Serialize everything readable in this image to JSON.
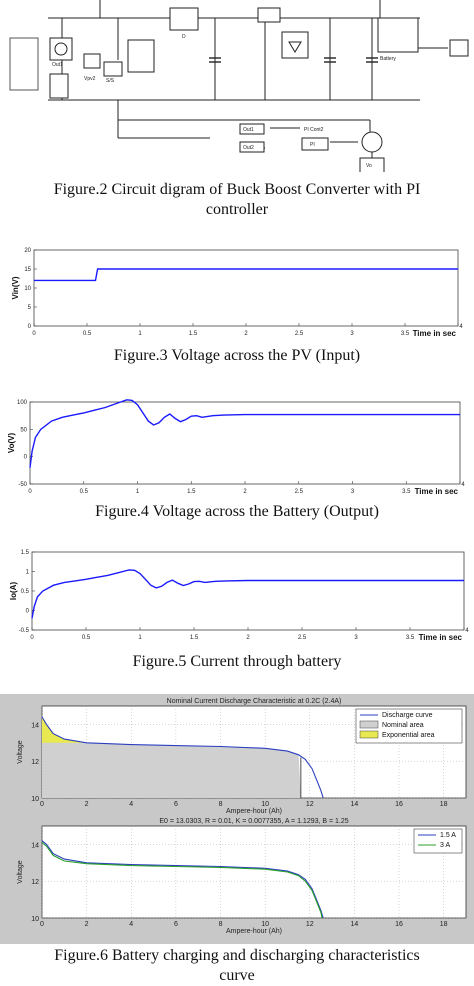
{
  "captions": {
    "fig2_line1": "Figure.2 Circuit digram  of Buck Boost Converter with PI",
    "fig2_line2": "controller",
    "fig3": "Figure.3 Voltage across the PV (Input)",
    "fig4": "Figure.4 Voltage across the Battery (Output)",
    "fig5": "Figure.5 Current through battery",
    "fig6_line1": "Figure.6 Battery charging and discharging characteristics",
    "fig6_line2": "curve"
  },
  "circuit": {
    "blocks": [
      "Out1",
      "Vpv2",
      "S/S",
      "D",
      "Battery",
      "PI Cont2",
      "PI",
      "Vo",
      "Out1",
      "Out2"
    ]
  },
  "chart_data": [
    {
      "type": "line",
      "ylabel": "Vin(V)",
      "xlabel": "Time in sec",
      "xlim": [
        0,
        4
      ],
      "ylim": [
        0,
        20
      ],
      "xticks": [
        "0",
        "0.5",
        "1",
        "1.5",
        "2",
        "2.5",
        "3",
        "3.5",
        "4"
      ],
      "yticks": [
        "0",
        "5",
        "10",
        "15",
        "20"
      ],
      "series": [
        {
          "x": [
            0,
            0.58,
            0.6,
            4
          ],
          "y": [
            12,
            12,
            15,
            15
          ]
        }
      ],
      "color": "#1a1aff"
    },
    {
      "type": "line",
      "ylabel": "Vo(V)",
      "xlabel": "Time in sec",
      "xlim": [
        0,
        4
      ],
      "ylim": [
        -50,
        100
      ],
      "xticks": [
        "0",
        "0.5",
        "1",
        "1.5",
        "2",
        "2.5",
        "3",
        "3.5",
        "4"
      ],
      "yticks": [
        "-50",
        "0",
        "50",
        "100"
      ],
      "series": [
        {
          "x": [
            0,
            0.02,
            0.05,
            0.1,
            0.2,
            0.3,
            0.4,
            0.5,
            0.6,
            0.7,
            0.8,
            0.9,
            0.95,
            1.0,
            1.05,
            1.1,
            1.15,
            1.2,
            1.25,
            1.3,
            1.35,
            1.4,
            1.45,
            1.5,
            1.55,
            1.6,
            1.7,
            1.8,
            2.0,
            2.5,
            3.0,
            3.5,
            4.0
          ],
          "y": [
            -20,
            10,
            35,
            50,
            65,
            72,
            76,
            80,
            85,
            90,
            97,
            104,
            103,
            95,
            80,
            65,
            58,
            62,
            72,
            78,
            70,
            64,
            68,
            74,
            75,
            72,
            75,
            76,
            77,
            77,
            77,
            77,
            77
          ]
        }
      ],
      "color": "#1a1aff"
    },
    {
      "type": "line",
      "ylabel": "Io(A)",
      "xlabel": "Time in sec",
      "xlim": [
        0,
        4
      ],
      "ylim": [
        -0.5,
        1.5
      ],
      "xticks": [
        "0",
        "0.5",
        "1",
        "1.5",
        "2",
        "2.5",
        "3",
        "3.5",
        "4"
      ],
      "yticks": [
        "-0.5",
        "0",
        "0.5",
        "1",
        "1.5"
      ],
      "series": [
        {
          "x": [
            0,
            0.02,
            0.05,
            0.1,
            0.2,
            0.3,
            0.4,
            0.5,
            0.6,
            0.7,
            0.8,
            0.9,
            0.95,
            1.0,
            1.05,
            1.1,
            1.15,
            1.2,
            1.25,
            1.3,
            1.35,
            1.4,
            1.45,
            1.5,
            1.55,
            1.6,
            1.7,
            1.8,
            2.0,
            2.5,
            3.0,
            3.5,
            4.0
          ],
          "y": [
            -0.2,
            0.1,
            0.35,
            0.5,
            0.65,
            0.72,
            0.76,
            0.8,
            0.85,
            0.9,
            0.97,
            1.04,
            1.03,
            0.95,
            0.8,
            0.65,
            0.58,
            0.62,
            0.72,
            0.78,
            0.7,
            0.64,
            0.68,
            0.74,
            0.75,
            0.72,
            0.75,
            0.76,
            0.77,
            0.77,
            0.77,
            0.77,
            0.77
          ]
        }
      ],
      "color": "#1a1aff"
    },
    {
      "type": "line",
      "title": "Nominal Current Discharge Characteristic at 0.2C (2.4A)",
      "xlabel": "Ampere-hour (Ah)",
      "ylabel": "Voltage",
      "xlim": [
        0,
        19
      ],
      "ylim": [
        10,
        15
      ],
      "xticks": [
        "0",
        "2",
        "4",
        "6",
        "8",
        "10",
        "12",
        "14",
        "16",
        "18"
      ],
      "yticks": [
        "10",
        "12",
        "14"
      ],
      "legend": [
        "Discharge curve",
        "Nominal area",
        "Exponential area"
      ],
      "series": [
        {
          "name": "Discharge curve",
          "x": [
            0,
            0.2,
            0.5,
            1,
            2,
            4,
            6,
            8,
            10,
            11,
            11.5,
            11.8,
            12.1,
            12.3,
            12.5,
            12.6
          ],
          "y": [
            14.4,
            14.0,
            13.5,
            13.2,
            13.0,
            12.9,
            12.85,
            12.8,
            12.7,
            12.55,
            12.35,
            12.1,
            11.6,
            11.0,
            10.4,
            10.0
          ]
        }
      ],
      "nominal_end_ah": 11.6,
      "exponential_end_ah": 2.0
    },
    {
      "type": "line",
      "title": "E0 = 13.0303, R = 0.01, K = 0.0077355, A = 1.1293, B = 1.25",
      "xlabel": "Ampere-hour (Ah)",
      "ylabel": "Voltage",
      "xlim": [
        0,
        19
      ],
      "ylim": [
        10,
        15
      ],
      "xticks": [
        "0",
        "2",
        "4",
        "6",
        "8",
        "10",
        "12",
        "14",
        "16",
        "18"
      ],
      "yticks": [
        "10",
        "12",
        "14"
      ],
      "legend": [
        "1.5 A",
        "3 A"
      ],
      "series": [
        {
          "name": "1.5 A",
          "x": [
            0,
            0.2,
            0.5,
            1,
            2,
            4,
            6,
            8,
            10,
            11,
            11.5,
            11.8,
            12.1,
            12.3,
            12.5,
            12.6
          ],
          "y": [
            14.2,
            14.0,
            13.5,
            13.2,
            13.0,
            12.9,
            12.85,
            12.8,
            12.7,
            12.55,
            12.35,
            12.1,
            11.6,
            11.0,
            10.4,
            10.0
          ]
        },
        {
          "name": "3 A",
          "x": [
            0,
            0.2,
            0.5,
            1,
            2,
            4,
            6,
            8,
            10,
            11,
            11.5,
            11.8,
            12.1,
            12.3,
            12.5,
            12.55
          ],
          "y": [
            14.1,
            13.9,
            13.4,
            13.1,
            12.95,
            12.85,
            12.8,
            12.75,
            12.65,
            12.5,
            12.3,
            12.0,
            11.5,
            10.9,
            10.3,
            10.0
          ]
        }
      ]
    }
  ]
}
